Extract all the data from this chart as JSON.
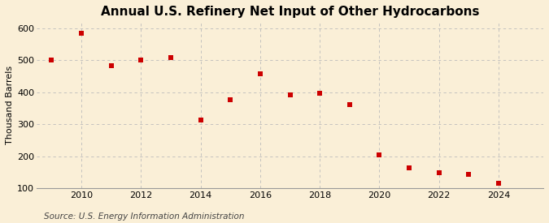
{
  "title": "Annual U.S. Refinery Net Input of Other Hydrocarbons",
  "ylabel": "Thousand Barrels",
  "source": "Source: U.S. Energy Information Administration",
  "background_color": "#faefd7",
  "plot_background_color": "#faefd7",
  "marker_color": "#cc0000",
  "marker": "s",
  "marker_size": 4,
  "grid_color": "#bbbbbb",
  "years": [
    2009,
    2010,
    2011,
    2012,
    2013,
    2014,
    2015,
    2016,
    2017,
    2018,
    2019,
    2020,
    2021,
    2022,
    2023,
    2024
  ],
  "values": [
    500,
    585,
    484,
    502,
    510,
    312,
    376,
    457,
    391,
    396,
    362,
    204,
    162,
    147,
    144,
    115
  ],
  "ylim": [
    100,
    620
  ],
  "yticks": [
    100,
    200,
    300,
    400,
    500,
    600
  ],
  "xlim": [
    2008.5,
    2025.5
  ],
  "xticks": [
    2010,
    2012,
    2014,
    2016,
    2018,
    2020,
    2022,
    2024
  ],
  "title_fontsize": 11,
  "axis_fontsize": 8,
  "source_fontsize": 7.5
}
